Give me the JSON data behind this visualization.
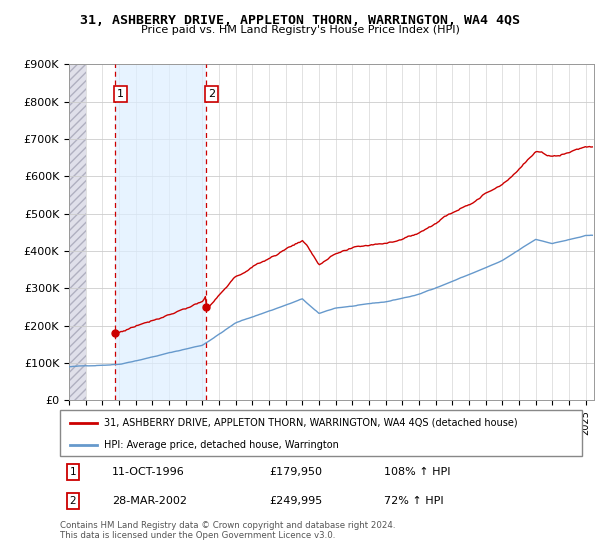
{
  "title_line1": "31, ASHBERRY DRIVE, APPLETON THORN, WARRINGTON, WA4 4QS",
  "title_line2": "Price paid vs. HM Land Registry's House Price Index (HPI)",
  "ylim": [
    0,
    900000
  ],
  "yticks": [
    0,
    100000,
    200000,
    300000,
    400000,
    500000,
    600000,
    700000,
    800000,
    900000
  ],
  "ytick_labels": [
    "£0",
    "£100K",
    "£200K",
    "£300K",
    "£400K",
    "£500K",
    "£600K",
    "£700K",
    "£800K",
    "£900K"
  ],
  "purchase1_date_x": 1996.78,
  "purchase1_price": 179950,
  "purchase2_date_x": 2002.23,
  "purchase2_price": 249995,
  "purchase1_date_str": "11-OCT-1996",
  "purchase1_price_str": "£179,950",
  "purchase1_hpi": "108% ↑ HPI",
  "purchase2_date_str": "28-MAR-2002",
  "purchase2_price_str": "£249,995",
  "purchase2_hpi": "72% ↑ HPI",
  "hpi_color": "#6699cc",
  "price_color": "#cc0000",
  "vline_color": "#cc0000",
  "shade_color": "#ddeeff",
  "hatch_color": "#d8d8e8",
  "legend_label1": "31, ASHBERRY DRIVE, APPLETON THORN, WARRINGTON, WA4 4QS (detached house)",
  "legend_label2": "HPI: Average price, detached house, Warrington",
  "footer": "Contains HM Land Registry data © Crown copyright and database right 2024.\nThis data is licensed under the Open Government Licence v3.0.",
  "xmin": 1994.0,
  "xmax": 2025.5
}
